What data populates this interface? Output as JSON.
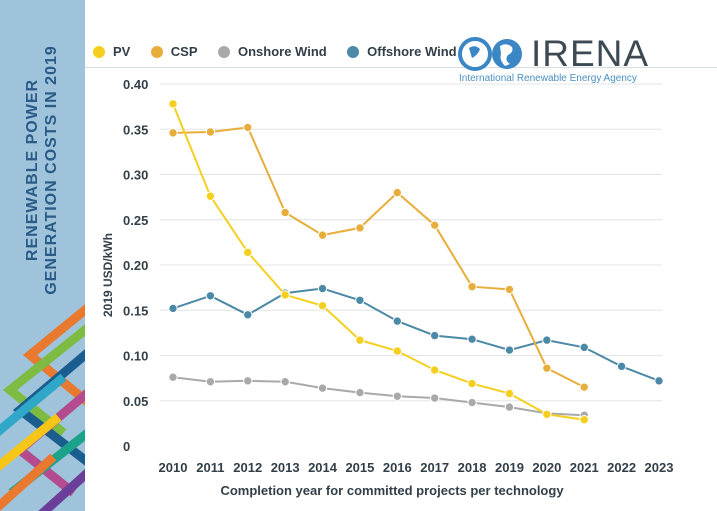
{
  "sidebar": {
    "title": "Renewable power generation costs in 2019"
  },
  "logo": {
    "word": "IRENA",
    "subtitle": "International Renewable Energy Agency",
    "icon": "globe-icon"
  },
  "colors": {
    "pv": "#f5cf1e",
    "csp": "#e8ae3b",
    "onshore": "#a9a9a9",
    "offshore": "#4b89a6",
    "sidebar": "#9ec3db",
    "sidebar_text": "#2a5a86"
  },
  "chart_data": {
    "type": "line",
    "xlabel": "Completion year for committed projects per technology",
    "ylabel": "2019 USD/kWh",
    "ylim": [
      0,
      0.4
    ],
    "yticks": [
      "0",
      "0.05",
      "0.10",
      "0.15",
      "0.20",
      "0.25",
      "0.30",
      "0.35",
      "0.40"
    ],
    "grid": true,
    "legend_position": "top-left",
    "x": [
      "2010",
      "2011",
      "2012",
      "2013",
      "2014",
      "2015",
      "2016",
      "2017",
      "2018",
      "2019",
      "2020",
      "2021",
      "2022",
      "2023"
    ],
    "series": [
      {
        "name": "PV",
        "color": "#f5cf1e",
        "points": [
          [
            2010,
            0.378
          ],
          [
            2011,
            0.276
          ],
          [
            2012,
            0.214
          ],
          [
            2013,
            0.167
          ],
          [
            2014,
            0.155
          ],
          [
            2015,
            0.117
          ],
          [
            2016,
            0.105
          ],
          [
            2017,
            0.084
          ],
          [
            2018,
            0.069
          ],
          [
            2019,
            0.058
          ],
          [
            2020,
            0.035
          ],
          [
            2021,
            0.029
          ]
        ]
      },
      {
        "name": "CSP",
        "color": "#e8ae3b",
        "points": [
          [
            2010,
            0.346
          ],
          [
            2011,
            0.347
          ],
          [
            2012,
            0.352
          ],
          [
            2013,
            0.258
          ],
          [
            2014,
            0.233
          ],
          [
            2015,
            0.241
          ],
          [
            2016,
            0.28
          ],
          [
            2017,
            0.244
          ],
          [
            2018,
            0.176
          ],
          [
            2019,
            0.173
          ],
          [
            2020,
            0.086
          ],
          [
            2021,
            0.065
          ]
        ]
      },
      {
        "name": "Onshore Wind",
        "color": "#a9a9a9",
        "points": [
          [
            2010,
            0.076
          ],
          [
            2011,
            0.071
          ],
          [
            2012,
            0.072
          ],
          [
            2013,
            0.071
          ],
          [
            2014,
            0.064
          ],
          [
            2015,
            0.059
          ],
          [
            2016,
            0.055
          ],
          [
            2017,
            0.053
          ],
          [
            2018,
            0.048
          ],
          [
            2019,
            0.043
          ],
          [
            2020,
            0.036
          ],
          [
            2021,
            0.034
          ]
        ]
      },
      {
        "name": "Offshore Wind",
        "color": "#4b89a6",
        "points": [
          [
            2010,
            0.152
          ],
          [
            2011,
            0.166
          ],
          [
            2012,
            0.145
          ],
          [
            2013,
            0.169
          ],
          [
            2014,
            0.174
          ],
          [
            2015,
            0.161
          ],
          [
            2016,
            0.138
          ],
          [
            2017,
            0.122
          ],
          [
            2018,
            0.118
          ],
          [
            2019,
            0.106
          ],
          [
            2020,
            0.117
          ],
          [
            2021,
            0.109
          ],
          [
            2022,
            0.088
          ],
          [
            2023,
            0.072
          ]
        ]
      }
    ]
  }
}
